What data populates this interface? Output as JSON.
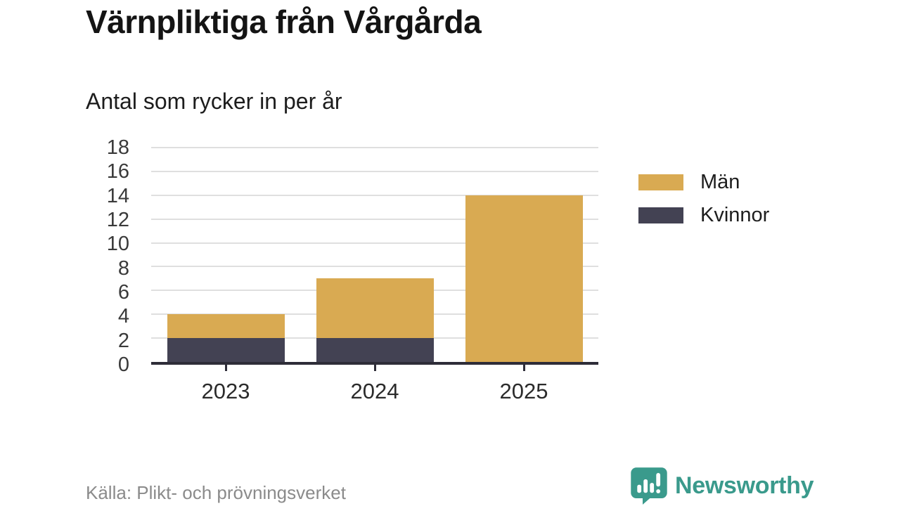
{
  "header": {
    "title": "Värnpliktiga från Vårgårda",
    "subtitle": "Antal som rycker in per år"
  },
  "chart_data": {
    "type": "bar",
    "stacked": true,
    "title": "Värnpliktiga från Vårgårda",
    "subtitle": "Antal som rycker in per år",
    "categories": [
      "2023",
      "2024",
      "2025"
    ],
    "series": [
      {
        "name": "Män",
        "color": "#d9aa52",
        "values": [
          2,
          5,
          14
        ]
      },
      {
        "name": "Kvinnor",
        "color": "#434253",
        "values": [
          2,
          2,
          0
        ]
      }
    ],
    "stack_note": "Kvinnor segment at bottom, Män on top",
    "totals": [
      4,
      7,
      14
    ],
    "xlabel": "",
    "ylabel": "",
    "ylim": [
      0,
      18
    ],
    "yticks": [
      0,
      2,
      4,
      6,
      8,
      10,
      12,
      14,
      16,
      18
    ],
    "grid": "horizontal",
    "gridline_color": "#dfdfdf",
    "axis_color": "#2e2d38",
    "legend_position": "right"
  },
  "footer": {
    "source": "Källa: Plikt- och prövningsverket",
    "brand": "Newsworthy",
    "brand_color": "#3a9a8c"
  }
}
